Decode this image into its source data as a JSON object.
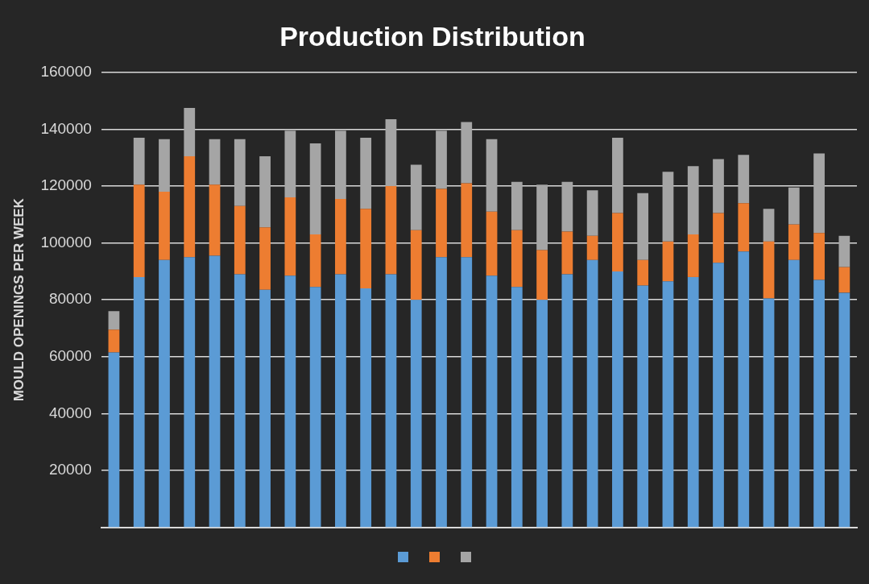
{
  "chart_data": {
    "type": "bar",
    "title": "Production Distribution",
    "ylabel": "MOULD OPENINGS PER WEEK",
    "categories": [
      null,
      null,
      null,
      null,
      null,
      null,
      null,
      null,
      null,
      null,
      null,
      null,
      null,
      null,
      null,
      null,
      null,
      null,
      null,
      null,
      null,
      null,
      null,
      null,
      null,
      null,
      null,
      null,
      null,
      null
    ],
    "stacked": true,
    "series": [
      {
        "color": "#5b9bd5",
        "values": [
          61500,
          88000,
          94000,
          95000,
          95500,
          89000,
          83500,
          88500,
          84500,
          89000,
          84000,
          89000,
          80000,
          95000,
          95000,
          88500,
          84500,
          80000,
          89000,
          94000,
          90000,
          85000,
          86500,
          88000,
          93000,
          97000,
          80500,
          94000,
          87000,
          82500
        ]
      },
      {
        "color": "#ed7d31",
        "values": [
          8000,
          32500,
          24000,
          35500,
          25000,
          24000,
          22000,
          27500,
          18500,
          26500,
          28000,
          31000,
          24500,
          24000,
          26000,
          22500,
          20000,
          17500,
          15000,
          8500,
          20500,
          9000,
          14000,
          15000,
          17500,
          17000,
          20000,
          12500,
          16500,
          9000
        ]
      },
      {
        "color": "#a5a5a5",
        "values": [
          6500,
          16500,
          18500,
          17000,
          16000,
          23500,
          25000,
          23500,
          32000,
          24000,
          25000,
          23500,
          23000,
          20500,
          21500,
          25500,
          17000,
          23000,
          17500,
          16000,
          26500,
          23500,
          24500,
          24000,
          19000,
          17000,
          11500,
          13000,
          28000,
          11000
        ]
      }
    ],
    "ylim": [
      0,
      160000
    ],
    "yticks": [
      20000,
      40000,
      60000,
      80000,
      100000,
      120000,
      140000,
      160000
    ],
    "grid": "y"
  }
}
